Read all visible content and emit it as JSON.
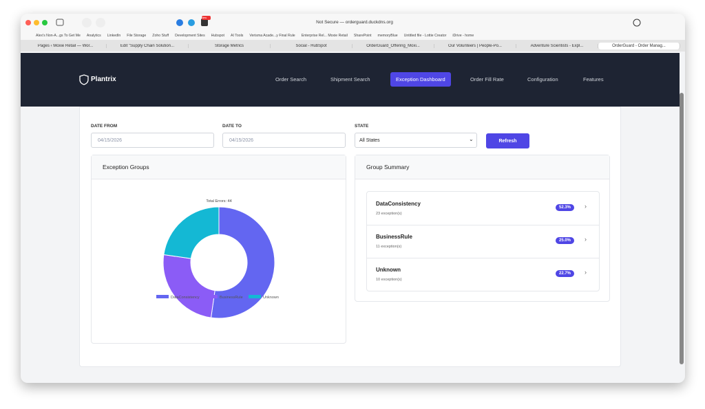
{
  "browser": {
    "address": "Not Secure — orderguard.duckdns.org",
    "badge": "New",
    "bookmarks": [
      "Alex's Non-A...gs To Get Me",
      "Analytics",
      "LinkedIn",
      "File Storage",
      "Zoho Stuff",
      "Development Sites",
      "Hubspot",
      "AI Tools",
      "Verisma Acade...y Final Rule",
      "Enterprise Rel... Moxie Retail",
      "SharePoint",
      "memoryBlue",
      "Untitled file - Lottie Creator",
      "iDrive - home"
    ],
    "tabs": [
      "Pages ‹ Moxie Retail — Wor...",
      "Edit \"Supply Chain Solution...",
      "Storage Metrics",
      "Social - HubSpot",
      "OrderGuard_Offering_Moxi...",
      "Our Volunteers | People-Po...",
      "Adventure Scientists - Expl...",
      "OrderGuard - Order Manag..."
    ]
  },
  "app": {
    "brand": "Plantrix",
    "nav": [
      "Order Search",
      "Shipment Search",
      "Exception Dashboard",
      "Order Fill Rate",
      "Configuration",
      "Features"
    ]
  },
  "filters": {
    "date_from_label": "DATE FROM",
    "date_from": "04/15/2026",
    "date_to_label": "DATE TO",
    "date_to": "04/15/2026",
    "state_label": "STATE",
    "state": "All States",
    "refresh": "Refresh"
  },
  "exception_groups": {
    "title": "Exception Groups"
  },
  "chart_data": {
    "type": "pie",
    "title": "Total Errors: 44",
    "categories": [
      "DataConsistency",
      "BusinessRule",
      "Unknown"
    ],
    "values": [
      23,
      11,
      10
    ],
    "colors": [
      "#6366f1",
      "#8b5cf6",
      "#14b8d4"
    ],
    "legend": "bottom"
  },
  "group_summary": {
    "title": "Group Summary",
    "items": [
      {
        "name": "DataConsistency",
        "count": "23 exception(s)",
        "share": "52.3%"
      },
      {
        "name": "BusinessRule",
        "count": "11 exception(s)",
        "share": "25.0%"
      },
      {
        "name": "Unknown",
        "count": "10 exception(s)",
        "share": "22.7%"
      }
    ]
  }
}
